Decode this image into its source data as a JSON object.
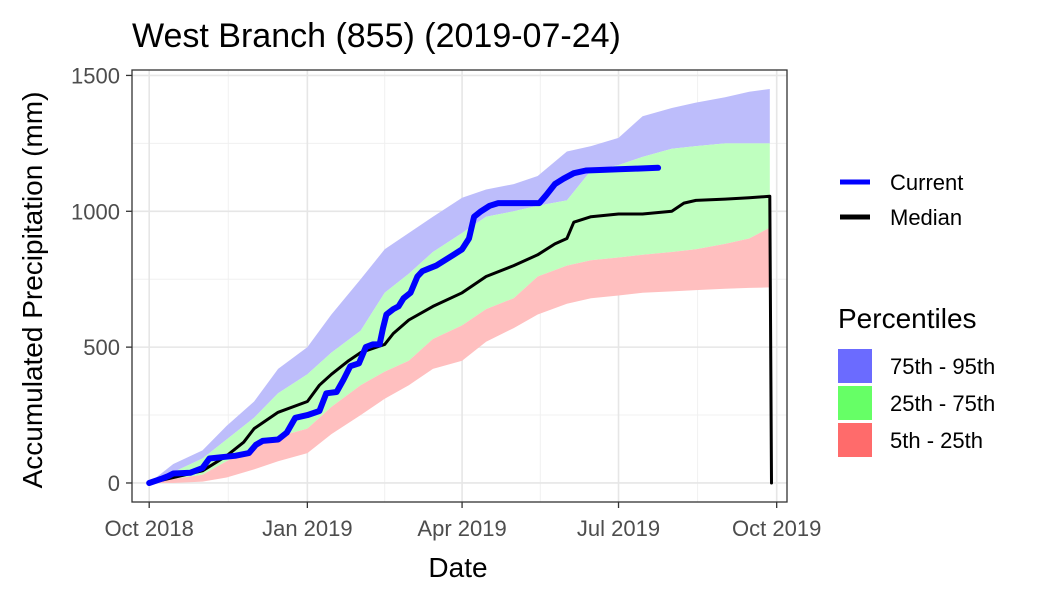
{
  "chart_data": {
    "type": "line",
    "title": "West Branch (855) (2019-07-24)",
    "xlabel": "Date",
    "ylabel": "Accumulated Precipitation (mm)",
    "xlim": [
      "2018-09-21",
      "2019-10-07"
    ],
    "ylim": [
      -70,
      1520
    ],
    "x_ticks": [
      {
        "date": "2018-10-01",
        "label": "Oct 2018"
      },
      {
        "date": "2019-01-01",
        "label": "Jan 2019"
      },
      {
        "date": "2019-04-01",
        "label": "Apr 2019"
      },
      {
        "date": "2019-07-01",
        "label": "Jul 2019"
      },
      {
        "date": "2019-10-01",
        "label": "Oct 2019"
      }
    ],
    "y_ticks": [
      {
        "value": 0,
        "label": "0"
      },
      {
        "value": 500,
        "label": "500"
      },
      {
        "value": 1000,
        "label": "1000"
      },
      {
        "value": 1500,
        "label": "1500"
      }
    ],
    "grid": true,
    "legend_position": "right",
    "series": [
      {
        "name": "Current",
        "color": "#0000ff",
        "points": [
          [
            "2018-10-01",
            0
          ],
          [
            "2018-10-08",
            15
          ],
          [
            "2018-10-12",
            25
          ],
          [
            "2018-10-15",
            35
          ],
          [
            "2018-10-25",
            38
          ],
          [
            "2018-11-01",
            55
          ],
          [
            "2018-11-05",
            90
          ],
          [
            "2018-11-12",
            95
          ],
          [
            "2018-11-20",
            100
          ],
          [
            "2018-11-28",
            110
          ],
          [
            "2018-12-02",
            140
          ],
          [
            "2018-12-06",
            155
          ],
          [
            "2018-12-15",
            160
          ],
          [
            "2018-12-20",
            185
          ],
          [
            "2018-12-25",
            240
          ],
          [
            "2019-01-01",
            250
          ],
          [
            "2019-01-08",
            265
          ],
          [
            "2019-01-12",
            330
          ],
          [
            "2019-01-18",
            335
          ],
          [
            "2019-01-22",
            380
          ],
          [
            "2019-01-26",
            430
          ],
          [
            "2019-01-31",
            440
          ],
          [
            "2019-02-04",
            500
          ],
          [
            "2019-02-08",
            510
          ],
          [
            "2019-02-12",
            510
          ],
          [
            "2019-02-14",
            570
          ],
          [
            "2019-02-16",
            620
          ],
          [
            "2019-02-20",
            640
          ],
          [
            "2019-02-23",
            650
          ],
          [
            "2019-02-26",
            680
          ],
          [
            "2019-03-02",
            700
          ],
          [
            "2019-03-06",
            760
          ],
          [
            "2019-03-09",
            780
          ],
          [
            "2019-03-13",
            790
          ],
          [
            "2019-03-17",
            800
          ],
          [
            "2019-03-22",
            820
          ],
          [
            "2019-03-27",
            840
          ],
          [
            "2019-04-01",
            860
          ],
          [
            "2019-04-05",
            900
          ],
          [
            "2019-04-08",
            980
          ],
          [
            "2019-04-12",
            1000
          ],
          [
            "2019-04-17",
            1020
          ],
          [
            "2019-04-22",
            1030
          ],
          [
            "2019-05-01",
            1030
          ],
          [
            "2019-05-10",
            1030
          ],
          [
            "2019-05-16",
            1030
          ],
          [
            "2019-05-20",
            1060
          ],
          [
            "2019-05-25",
            1100
          ],
          [
            "2019-05-30",
            1120
          ],
          [
            "2019-06-05",
            1140
          ],
          [
            "2019-06-12",
            1150
          ],
          [
            "2019-06-20",
            1152
          ],
          [
            "2019-07-01",
            1155
          ],
          [
            "2019-07-12",
            1157
          ],
          [
            "2019-07-24",
            1160
          ]
        ]
      },
      {
        "name": "Median",
        "color": "#000000",
        "points": [
          [
            "2018-10-01",
            0
          ],
          [
            "2018-10-15",
            20
          ],
          [
            "2018-11-01",
            45
          ],
          [
            "2018-11-15",
            100
          ],
          [
            "2018-11-25",
            150
          ],
          [
            "2018-12-01",
            200
          ],
          [
            "2018-12-15",
            260
          ],
          [
            "2019-01-01",
            300
          ],
          [
            "2019-01-08",
            360
          ],
          [
            "2019-01-15",
            400
          ],
          [
            "2019-01-25",
            450
          ],
          [
            "2019-02-01",
            480
          ],
          [
            "2019-02-15",
            510
          ],
          [
            "2019-02-20",
            550
          ],
          [
            "2019-03-01",
            600
          ],
          [
            "2019-03-15",
            650
          ],
          [
            "2019-04-01",
            700
          ],
          [
            "2019-04-15",
            760
          ],
          [
            "2019-05-01",
            800
          ],
          [
            "2019-05-15",
            840
          ],
          [
            "2019-05-25",
            880
          ],
          [
            "2019-06-01",
            900
          ],
          [
            "2019-06-05",
            960
          ],
          [
            "2019-06-15",
            980
          ],
          [
            "2019-07-01",
            990
          ],
          [
            "2019-07-15",
            990
          ],
          [
            "2019-08-01",
            1000
          ],
          [
            "2019-08-08",
            1030
          ],
          [
            "2019-08-15",
            1040
          ],
          [
            "2019-09-01",
            1045
          ],
          [
            "2019-09-15",
            1050
          ],
          [
            "2019-09-27",
            1055
          ],
          [
            "2019-09-28",
            0
          ]
        ]
      }
    ],
    "bands": {
      "title": "Percentiles",
      "dates": [
        "2018-10-01",
        "2018-10-15",
        "2018-11-01",
        "2018-11-15",
        "2018-12-01",
        "2018-12-15",
        "2019-01-01",
        "2019-01-15",
        "2019-02-01",
        "2019-02-15",
        "2019-03-01",
        "2019-03-15",
        "2019-04-01",
        "2019-04-15",
        "2019-05-01",
        "2019-05-15",
        "2019-06-01",
        "2019-06-15",
        "2019-07-01",
        "2019-07-15",
        "2019-08-01",
        "2019-08-15",
        "2019-09-01",
        "2019-09-15",
        "2019-09-27"
      ],
      "p5": [
        0,
        0,
        5,
        20,
        50,
        80,
        110,
        180,
        250,
        310,
        360,
        420,
        450,
        520,
        570,
        620,
        660,
        680,
        690,
        700,
        705,
        710,
        715,
        718,
        720
      ],
      "p25": [
        0,
        15,
        30,
        80,
        130,
        170,
        200,
        280,
        360,
        410,
        450,
        530,
        580,
        640,
        680,
        760,
        800,
        820,
        830,
        840,
        850,
        860,
        880,
        900,
        940
      ],
      "p75": [
        0,
        40,
        90,
        160,
        240,
        330,
        400,
        480,
        560,
        700,
        770,
        850,
        920,
        980,
        1000,
        1020,
        1040,
        1150,
        1170,
        1200,
        1230,
        1240,
        1250,
        1250,
        1250
      ],
      "p95": [
        0,
        70,
        120,
        210,
        300,
        420,
        500,
        620,
        750,
        860,
        920,
        980,
        1050,
        1080,
        1100,
        1130,
        1220,
        1240,
        1270,
        1350,
        1380,
        1400,
        1420,
        1440,
        1450
      ],
      "items": [
        {
          "label": "75th - 95th",
          "color": "#6b6bff",
          "fill": "#bdbdfb"
        },
        {
          "label": "25th - 75th",
          "color": "#66ff66",
          "fill": "#bfffbf"
        },
        {
          "label": "5th - 25th",
          "color": "#ff6b6b",
          "fill": "#ffbfbf"
        }
      ]
    }
  }
}
